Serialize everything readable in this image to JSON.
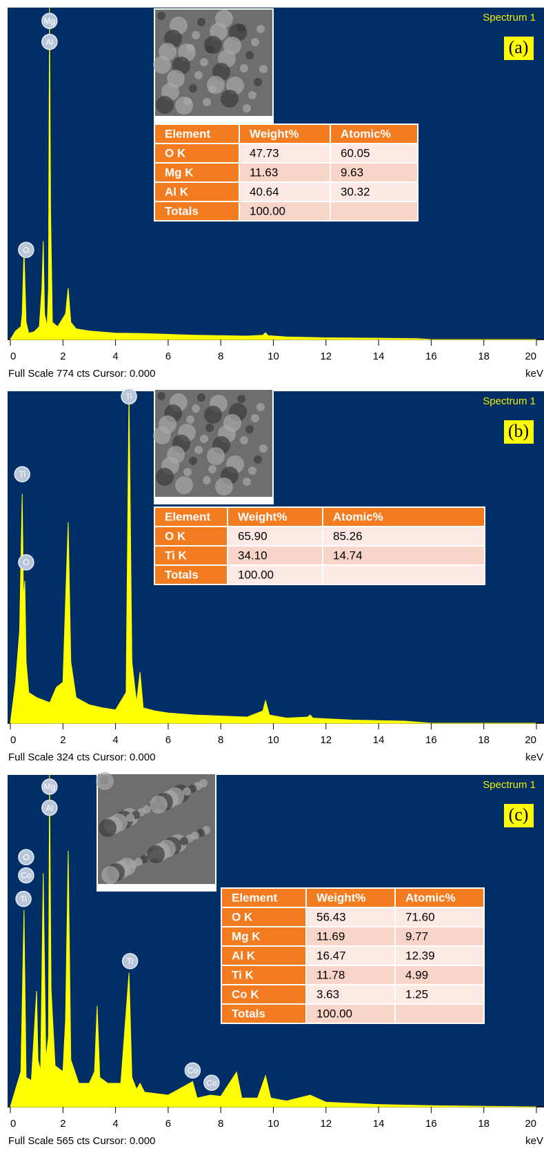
{
  "chart_data": [
    {
      "type": "area",
      "title": "Spectrum 1",
      "panel_label": "(a)",
      "footer": "Full Scale 774 cts Cursor: 0.000",
      "x_label": "keV",
      "xlim": [
        0,
        20
      ],
      "xticks": [
        0,
        2,
        4,
        6,
        8,
        10,
        12,
        14,
        16,
        18,
        20
      ],
      "ylim": [
        0,
        774
      ],
      "series": [
        {
          "color": "#ffff00",
          "x": [
            0,
            0.2,
            0.4,
            0.45,
            0.52,
            0.6,
            0.7,
            0.9,
            1.1,
            1.2,
            1.25,
            1.3,
            1.4,
            1.45,
            1.49,
            1.53,
            1.6,
            1.8,
            2.1,
            2.2,
            2.3,
            2.5,
            3,
            4,
            5,
            6,
            7,
            8,
            9,
            9.6,
            9.7,
            9.8,
            10.5,
            12,
            14,
            15.5,
            16,
            20
          ],
          "values": [
            0,
            20,
            30,
            60,
            210,
            40,
            15,
            18,
            30,
            120,
            230,
            60,
            30,
            120,
            774,
            300,
            40,
            30,
            60,
            120,
            40,
            25,
            20,
            15,
            14,
            12,
            10,
            9,
            8,
            10,
            16,
            9,
            6,
            4,
            3,
            2,
            0,
            0
          ]
        }
      ],
      "peak_labels": [
        {
          "text": "Mg",
          "x": 1.49,
          "y": 743
        },
        {
          "text": "Al",
          "x": 1.49,
          "y": 694
        },
        {
          "text": "O",
          "x": 0.6,
          "y": 209
        }
      ],
      "table": {
        "header": [
          "Element",
          "Weight%",
          "Atomic%"
        ],
        "rows": [
          [
            "O K",
            "47.73",
            "60.05"
          ],
          [
            "Mg K",
            "11.63",
            "9.63"
          ],
          [
            "Al K",
            "40.64",
            "30.32"
          ],
          [
            "Totals",
            "100.00",
            null
          ]
        ]
      }
    },
    {
      "type": "area",
      "title": "Spectrum 1",
      "panel_label": "(b)",
      "footer": "Full Scale 324 cts Cursor: 0.000",
      "x_label": "keV",
      "xlim": [
        0,
        20
      ],
      "xticks": [
        0,
        2,
        4,
        6,
        8,
        10,
        12,
        14,
        16,
        18,
        20
      ],
      "ylim": [
        0,
        324
      ],
      "series": [
        {
          "color": "#ffff00",
          "x": [
            0,
            0.2,
            0.35,
            0.45,
            0.5,
            0.55,
            0.6,
            0.7,
            1,
            1.5,
            1.75,
            2,
            2.1,
            2.2,
            2.3,
            2.5,
            3,
            3.5,
            4,
            4.4,
            4.51,
            4.62,
            4.8,
            4.93,
            5.05,
            5.5,
            6,
            7,
            8,
            9,
            9.6,
            9.7,
            9.85,
            10.5,
            11.3,
            11.4,
            11.5,
            13,
            15,
            16,
            20
          ],
          "values": [
            0,
            40,
            90,
            224,
            120,
            139,
            60,
            30,
            25,
            20,
            35,
            40,
            120,
            196,
            60,
            25,
            18,
            15,
            13,
            30,
            324,
            60,
            20,
            50,
            15,
            12,
            10,
            8,
            7,
            6,
            12,
            22,
            8,
            5,
            6,
            8,
            5,
            3,
            2,
            0,
            0
          ]
        }
      ],
      "peak_labels": [
        {
          "text": "Ti",
          "x": 4.51,
          "y": 319
        },
        {
          "text": "Ti",
          "x": 0.45,
          "y": 243
        },
        {
          "text": "O",
          "x": 0.6,
          "y": 157
        }
      ],
      "table": {
        "header": [
          "Element",
          "Weight%",
          "Atomic%"
        ],
        "rows": [
          [
            "O K",
            "65.90",
            "85.26"
          ],
          [
            "Ti K",
            "34.10",
            "14.74"
          ],
          [
            "Totals",
            "100.00",
            null
          ]
        ]
      }
    },
    {
      "type": "area",
      "title": "Spectrum 1",
      "panel_label": "(c)",
      "footer": "Full Scale 565 cts Cursor: 0.000",
      "x_label": "keV",
      "xlim": [
        0,
        20
      ],
      "xticks": [
        0,
        2,
        4,
        6,
        8,
        10,
        12,
        14,
        16,
        18,
        20
      ],
      "ylim": [
        0,
        565
      ],
      "series": [
        {
          "color": "#ffff00",
          "x": [
            0,
            0.2,
            0.4,
            0.52,
            0.6,
            0.8,
            1,
            1.05,
            1.15,
            1.25,
            1.35,
            1.45,
            1.49,
            1.55,
            1.7,
            2,
            2.1,
            2.2,
            2.3,
            2.6,
            3,
            3.2,
            3.3,
            3.4,
            3.7,
            4.2,
            4.51,
            4.62,
            4.8,
            4.93,
            5.1,
            6,
            6.93,
            7.1,
            7.6,
            8,
            8.6,
            8.8,
            9.4,
            9.7,
            9.9,
            10.5,
            11.4,
            12,
            14,
            16,
            20
          ],
          "values": [
            0,
            30,
            60,
            335,
            50,
            45,
            197,
            80,
            60,
            398,
            80,
            120,
            565,
            200,
            70,
            60,
            150,
            436,
            80,
            40,
            40,
            60,
            172,
            50,
            40,
            40,
            228,
            50,
            30,
            40,
            25,
            20,
            43,
            15,
            20,
            18,
            59,
            15,
            15,
            53,
            15,
            10,
            20,
            8,
            4,
            2,
            0
          ]
        }
      ],
      "peak_labels": [
        {
          "text": "Mg",
          "x": 1.49,
          "y": 545
        },
        {
          "text": "Al",
          "x": 1.49,
          "y": 509
        },
        {
          "text": "O",
          "x": 0.6,
          "y": 425
        },
        {
          "text": "Co",
          "x": 0.6,
          "y": 394
        },
        {
          "text": "Ti",
          "x": 0.5,
          "y": 354
        },
        {
          "text": "Ti",
          "x": 4.55,
          "y": 248
        },
        {
          "text": "Co",
          "x": 6.93,
          "y": 62
        },
        {
          "text": "Co",
          "x": 7.65,
          "y": 41
        }
      ],
      "table": {
        "header": [
          "Element",
          "Weight%",
          "Atomic%"
        ],
        "rows": [
          [
            "O K",
            "56.43",
            "71.60"
          ],
          [
            "Mg K",
            "11.69",
            "9.77"
          ],
          [
            "Al K",
            "16.47",
            "12.39"
          ],
          [
            "Ti K",
            "11.78",
            "4.99"
          ],
          [
            "Co K",
            "3.63",
            "1.25"
          ],
          [
            "Totals",
            "100.00",
            null
          ]
        ]
      }
    }
  ]
}
